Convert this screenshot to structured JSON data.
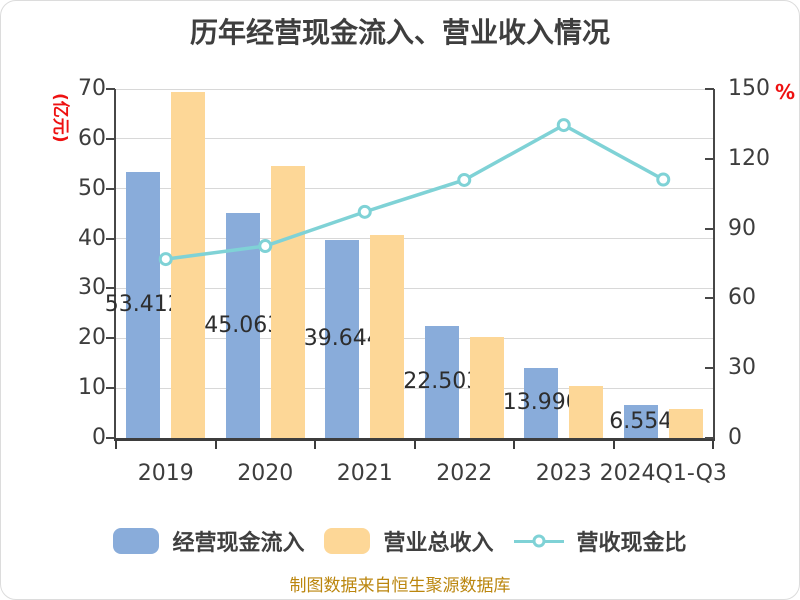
{
  "title": "历年经营现金流入、营业收入情况",
  "footer": "制图数据来自恒生聚源数据库",
  "left_axis": {
    "unit": "(亿元)",
    "tick_values": [
      0,
      10,
      20,
      30,
      40,
      50,
      60,
      70
    ],
    "tick_labels": [
      "0",
      "10",
      "20",
      "30",
      "40",
      "50",
      "60",
      "70"
    ]
  },
  "right_axis": {
    "unit": "%",
    "tick_values": [
      0,
      30,
      60,
      90,
      120,
      150
    ],
    "tick_labels": [
      "0",
      "30",
      "60",
      "90",
      "120",
      "150"
    ]
  },
  "legend": [
    {
      "label": "经营现金流入",
      "type": "bar",
      "color": "#89acda"
    },
    {
      "label": "营业总收入",
      "type": "bar",
      "color": "#fdd797"
    },
    {
      "label": "营收现金比",
      "type": "line",
      "color": "#7fd2d6"
    }
  ],
  "colors": {
    "cash_bar": "#89acda",
    "revenue_bar": "#fdd797",
    "ratio_line": "#7fd2d6",
    "axis_unit_red": "#ee1111",
    "footer_gold": "#bb860e",
    "title_gray": "#3e3e3e",
    "gridline": "#d8d8d8"
  },
  "chart_data": {
    "type": "bar+line combo",
    "title": "历年经营现金流入、营业收入情况",
    "categories": [
      "2019",
      "2020",
      "2021",
      "2022",
      "2023",
      "2024Q1-Q3"
    ],
    "series": [
      {
        "name": "经营现金流入",
        "type": "bar",
        "axis": "left",
        "color": "#89acda",
        "values": [
          53.412,
          45.063,
          39.644,
          22.503,
          13.99,
          6.554
        ],
        "labels": [
          "53.412",
          "45.063",
          "39.644",
          "22.503",
          "13.990",
          "6.554"
        ]
      },
      {
        "name": "营业总收入",
        "type": "bar",
        "axis": "left",
        "color": "#fdd797",
        "values": [
          69.5,
          54.6,
          40.8,
          20.3,
          10.4,
          5.9
        ]
      },
      {
        "name": "营收现金比",
        "type": "line",
        "axis": "right",
        "color": "#7fd2d6",
        "values": [
          76.9,
          82.5,
          97.2,
          110.9,
          134.5,
          111.1
        ]
      }
    ],
    "left_ylabel": "(亿元)",
    "right_ylabel": "%",
    "left_ylim": [
      0,
      70
    ],
    "right_ylim": [
      0,
      150
    ],
    "grid": true,
    "legend_position": "bottom"
  }
}
